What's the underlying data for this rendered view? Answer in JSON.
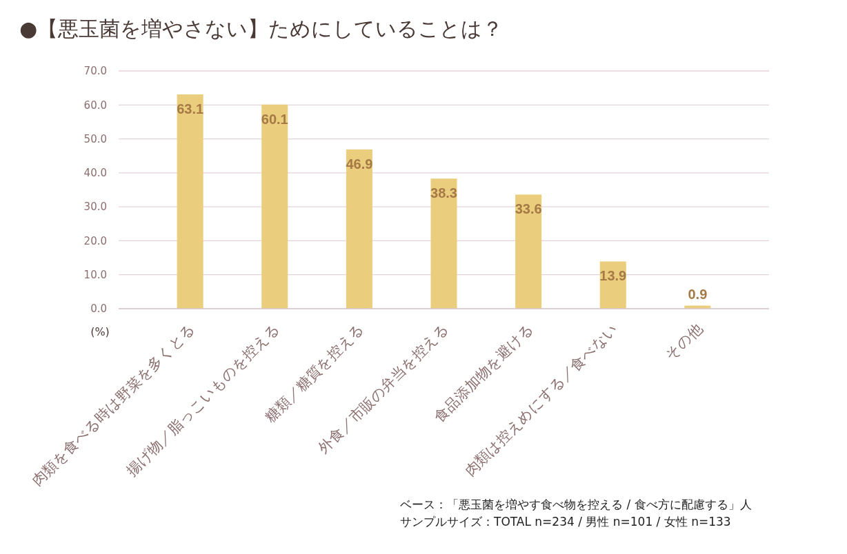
{
  "chart_data": {
    "type": "bar",
    "title": "●【悪玉菌を増やさない】ためにしていることは？",
    "ylabel": "(%)",
    "categories": [
      "肉類を食べる時は野菜を多くとる",
      "揚げ物／脂っこいものを控える",
      "糖類／糖質を控える",
      "外食／市販の弁当を控える",
      "食品添加物を避ける",
      "肉類は控えめにする／食べない",
      "その他"
    ],
    "values": [
      63.1,
      60.1,
      46.9,
      38.3,
      33.6,
      13.9,
      0.9
    ],
    "color": "#ebcd7e",
    "ylim": [
      0,
      70
    ],
    "yticks": [
      {
        "value": 0,
        "label": "0.0"
      },
      {
        "value": 10,
        "label": "10.0"
      },
      {
        "value": 20,
        "label": "20.0"
      },
      {
        "value": 30,
        "label": "30.0"
      },
      {
        "value": 40,
        "label": "40.0"
      },
      {
        "value": 50,
        "label": "50.0"
      },
      {
        "value": 60,
        "label": "60.0"
      },
      {
        "value": 70,
        "label": "70.0"
      }
    ],
    "grid": "y",
    "data_labels": true,
    "annotations": [
      "ベース：「悪玉菌を増やす食べ物を控える / 食べ方に配慮する」人",
      "サンプルサイズ：TOTAL n=234 / 男性 n=101 / 女性 n=133"
    ]
  }
}
